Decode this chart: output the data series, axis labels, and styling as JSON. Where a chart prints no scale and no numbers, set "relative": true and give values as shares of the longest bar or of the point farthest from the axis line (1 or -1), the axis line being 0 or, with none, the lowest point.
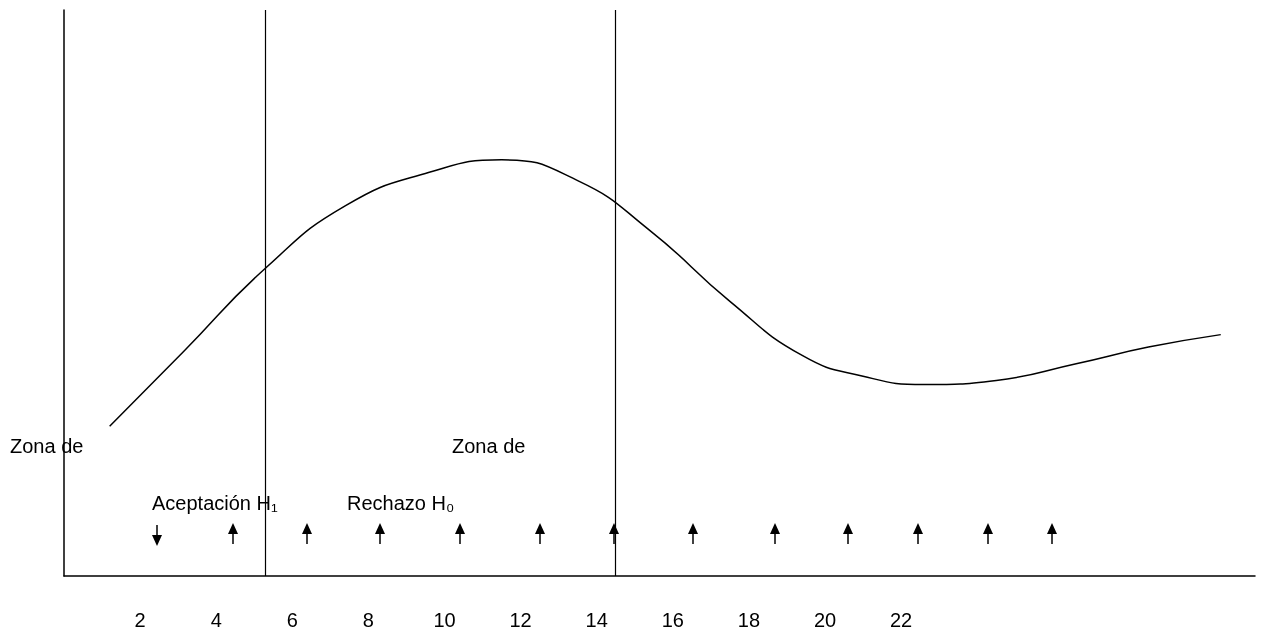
{
  "chart_data": {
    "type": "line",
    "relative": true,
    "x": [
      1.2,
      3.15,
      5.3,
      7.4,
      9.6,
      11.5,
      13.5,
      15.4,
      17.5,
      19.4,
      21,
      22.6,
      24.5,
      26.6,
      28.5,
      30.4
    ],
    "series": [
      {
        "color": "#000000",
        "values": [
          0.36,
          0.54,
          0.74,
          0.89,
          0.97,
          1.0,
          0.95,
          0.83,
          0.66,
          0.53,
          0.48,
          0.46,
          0.47,
          0.51,
          0.55,
          0.58
        ]
      }
    ],
    "xlim": [
      0,
      31.3
    ],
    "xticks": [
      2,
      4,
      6,
      8,
      10,
      12,
      14,
      16,
      18,
      20,
      22
    ],
    "ref_lines": [
      {
        "axis": "x",
        "value": 5.3,
        "color": "#000000"
      },
      {
        "axis": "x",
        "value": 14.5,
        "color": "#000000"
      }
    ],
    "annotations": [
      "Zona de",
      "Aceptación H₁",
      "Zona de",
      "Rechazo H₀"
    ],
    "grid": false,
    "marker": "none",
    "line_style": "solid"
  }
}
